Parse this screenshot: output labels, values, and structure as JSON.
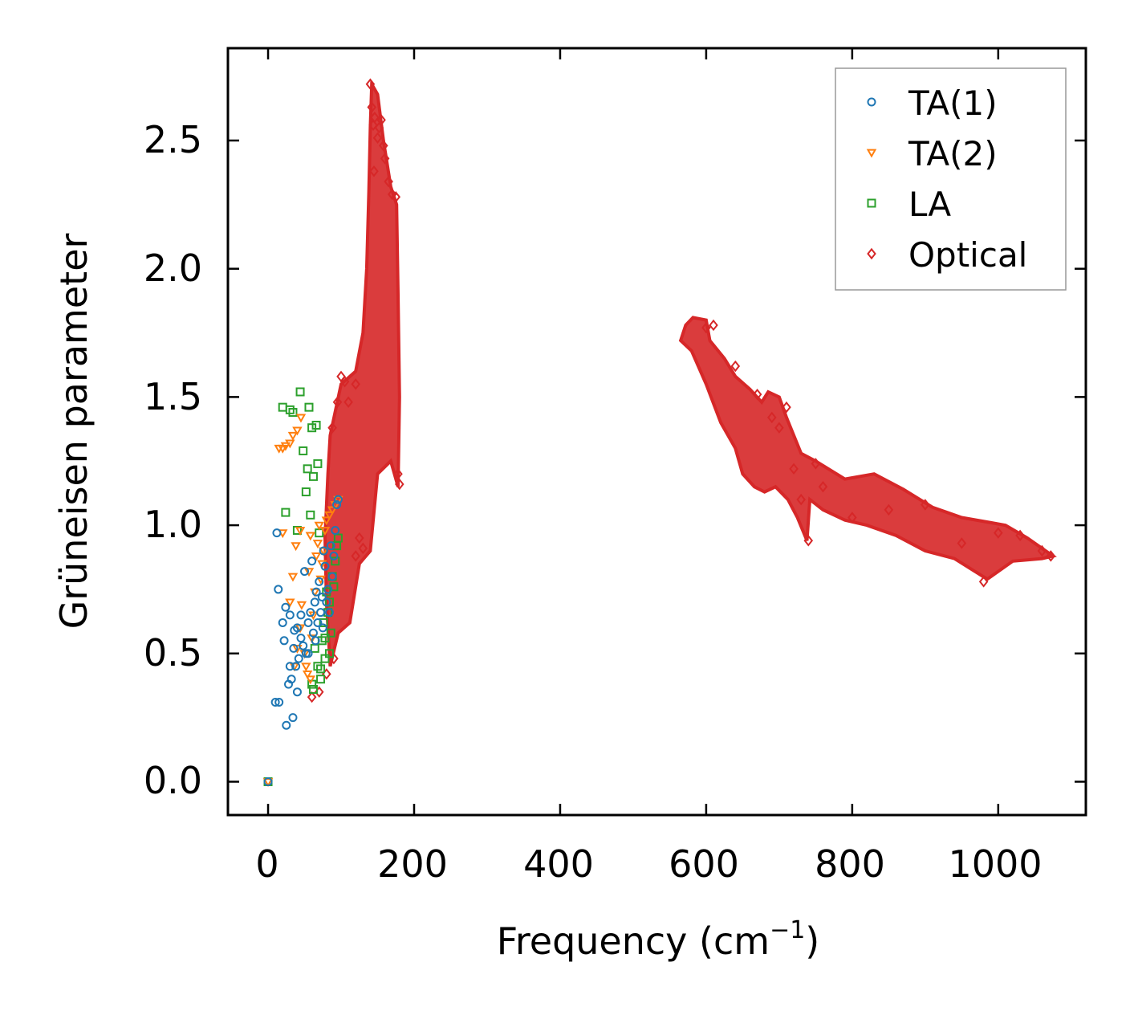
{
  "chart_data": {
    "type": "scatter",
    "xlabel": "Frequency (cm",
    "xlabel_sup": "−1",
    "xlabel_close": ")",
    "ylabel": "Grüneisen parameter",
    "xlim": [
      -55,
      1120
    ],
    "ylim": [
      -0.13,
      2.86
    ],
    "xticks": [
      0,
      200,
      400,
      600,
      800,
      1000
    ],
    "xtick_labels": [
      "0",
      "200",
      "400",
      "600",
      "800",
      "1000"
    ],
    "yticks": [
      0.0,
      0.5,
      1.0,
      1.5,
      2.0,
      2.5
    ],
    "ytick_labels": [
      "0.0",
      "0.5",
      "1.0",
      "1.5",
      "2.0",
      "2.5"
    ],
    "legend_position": "top-right",
    "series": [
      {
        "name": "TA(1)",
        "marker": "circle",
        "color": "#1f77b4",
        "points": [
          [
            0,
            0
          ],
          [
            10,
            0.31
          ],
          [
            15,
            0.31
          ],
          [
            12,
            0.97
          ],
          [
            14,
            0.75
          ],
          [
            20,
            0.62
          ],
          [
            22,
            0.55
          ],
          [
            24,
            0.68
          ],
          [
            25,
            0.22
          ],
          [
            28,
            0.38
          ],
          [
            30,
            0.65
          ],
          [
            32,
            0.4
          ],
          [
            34,
            0.25
          ],
          [
            35,
            0.52
          ],
          [
            36,
            0.59
          ],
          [
            38,
            0.45
          ],
          [
            40,
            0.6
          ],
          [
            42,
            0.48
          ],
          [
            45,
            0.56
          ],
          [
            48,
            0.53
          ],
          [
            50,
            0.82
          ],
          [
            52,
            0.5
          ],
          [
            55,
            0.62
          ],
          [
            58,
            0.66
          ],
          [
            60,
            0.86
          ],
          [
            62,
            0.58
          ],
          [
            64,
            0.7
          ],
          [
            66,
            0.74
          ],
          [
            68,
            0.62
          ],
          [
            70,
            0.78
          ],
          [
            72,
            0.66
          ],
          [
            74,
            0.72
          ],
          [
            76,
            0.9
          ],
          [
            78,
            0.84
          ],
          [
            80,
            0.7
          ],
          [
            82,
            0.75
          ],
          [
            84,
            0.66
          ],
          [
            86,
            0.92
          ],
          [
            88,
            0.8
          ],
          [
            90,
            0.88
          ],
          [
            92,
            0.98
          ],
          [
            94,
            1.08
          ],
          [
            96,
            1.1
          ],
          [
            30,
            0.45
          ],
          [
            40,
            0.35
          ],
          [
            45,
            0.65
          ],
          [
            55,
            0.5
          ],
          [
            65,
            0.55
          ],
          [
            75,
            0.6
          ]
        ]
      },
      {
        "name": "TA(2)",
        "marker": "triangle-down",
        "color": "#ff7f0e",
        "points": [
          [
            0,
            0
          ],
          [
            15,
            1.3
          ],
          [
            20,
            1.3
          ],
          [
            24,
            1.31
          ],
          [
            30,
            1.32
          ],
          [
            34,
            1.35
          ],
          [
            40,
            1.37
          ],
          [
            45,
            1.42
          ],
          [
            20,
            0.97
          ],
          [
            30,
            0.7
          ],
          [
            34,
            0.8
          ],
          [
            38,
            0.92
          ],
          [
            40,
            0.52
          ],
          [
            44,
            0.98
          ],
          [
            46,
            0.69
          ],
          [
            50,
            0.5
          ],
          [
            52,
            0.45
          ],
          [
            56,
            0.82
          ],
          [
            58,
            0.96
          ],
          [
            60,
            0.56
          ],
          [
            62,
            0.65
          ],
          [
            64,
            0.74
          ],
          [
            66,
            0.88
          ],
          [
            68,
            0.93
          ],
          [
            70,
            1.0
          ],
          [
            72,
            0.79
          ],
          [
            74,
            0.85
          ],
          [
            76,
            0.9
          ],
          [
            78,
            0.98
          ],
          [
            80,
            1.02
          ],
          [
            84,
            1.04
          ],
          [
            88,
            1.06
          ],
          [
            92,
            1.08
          ],
          [
            96,
            1.1
          ],
          [
            36,
            0.45
          ],
          [
            44,
            0.6
          ],
          [
            54,
            0.42
          ],
          [
            58,
            0.4
          ]
        ]
      },
      {
        "name": "LA",
        "marker": "square",
        "color": "#2ca02c",
        "points": [
          [
            0,
            0
          ],
          [
            20,
            1.46
          ],
          [
            24,
            1.05
          ],
          [
            30,
            1.45
          ],
          [
            34,
            1.44
          ],
          [
            40,
            0.98
          ],
          [
            44,
            1.52
          ],
          [
            48,
            1.29
          ],
          [
            52,
            1.13
          ],
          [
            54,
            1.22
          ],
          [
            56,
            1.46
          ],
          [
            58,
            1.04
          ],
          [
            60,
            1.38
          ],
          [
            62,
            1.19
          ],
          [
            64,
            0.52
          ],
          [
            66,
            1.39
          ],
          [
            68,
            1.24
          ],
          [
            70,
            0.97
          ],
          [
            72,
            0.4
          ],
          [
            74,
            0.55
          ],
          [
            76,
            0.62
          ],
          [
            78,
            0.48
          ],
          [
            80,
            0.74
          ],
          [
            82,
            0.66
          ],
          [
            84,
            0.7
          ],
          [
            86,
            0.58
          ],
          [
            88,
            0.8
          ],
          [
            90,
            0.76
          ],
          [
            92,
            0.86
          ],
          [
            94,
            0.92
          ],
          [
            96,
            0.95
          ],
          [
            60,
            0.38
          ],
          [
            62,
            0.36
          ],
          [
            68,
            0.45
          ],
          [
            72,
            0.44
          ],
          [
            78,
            0.56
          ],
          [
            84,
            0.5
          ]
        ]
      },
      {
        "name": "Optical",
        "marker": "diamond",
        "color": "#d62728",
        "points": [
          [
            140,
            2.72
          ],
          [
            142,
            2.63
          ],
          [
            144,
            2.56
          ],
          [
            146,
            2.59
          ],
          [
            150,
            2.51
          ],
          [
            152,
            2.55
          ],
          [
            155,
            2.58
          ],
          [
            158,
            2.48
          ],
          [
            160,
            2.43
          ],
          [
            145,
            2.38
          ],
          [
            165,
            2.34
          ],
          [
            170,
            2.29
          ],
          [
            175,
            2.28
          ],
          [
            178,
            1.2
          ],
          [
            180,
            1.16
          ],
          [
            100,
            1.58
          ],
          [
            105,
            1.56
          ],
          [
            120,
            1.55
          ],
          [
            110,
            1.48
          ],
          [
            95,
            1.48
          ],
          [
            88,
            1.38
          ],
          [
            70,
            0.35
          ],
          [
            60,
            0.33
          ],
          [
            80,
            0.42
          ],
          [
            90,
            0.48
          ],
          [
            130,
            0.91
          ],
          [
            125,
            0.95
          ],
          [
            120,
            0.88
          ],
          [
            600,
            1.77
          ],
          [
            610,
            1.78
          ],
          [
            640,
            1.62
          ],
          [
            670,
            1.51
          ],
          [
            690,
            1.42
          ],
          [
            700,
            1.38
          ],
          [
            710,
            1.46
          ],
          [
            720,
            1.22
          ],
          [
            730,
            1.1
          ],
          [
            740,
            0.94
          ],
          [
            750,
            1.24
          ],
          [
            760,
            1.15
          ],
          [
            800,
            1.03
          ],
          [
            850,
            1.06
          ],
          [
            900,
            1.08
          ],
          [
            950,
            0.93
          ],
          [
            980,
            0.78
          ],
          [
            1000,
            0.97
          ],
          [
            1030,
            0.96
          ],
          [
            1060,
            0.9
          ],
          [
            1072,
            0.88
          ]
        ]
      }
    ]
  }
}
